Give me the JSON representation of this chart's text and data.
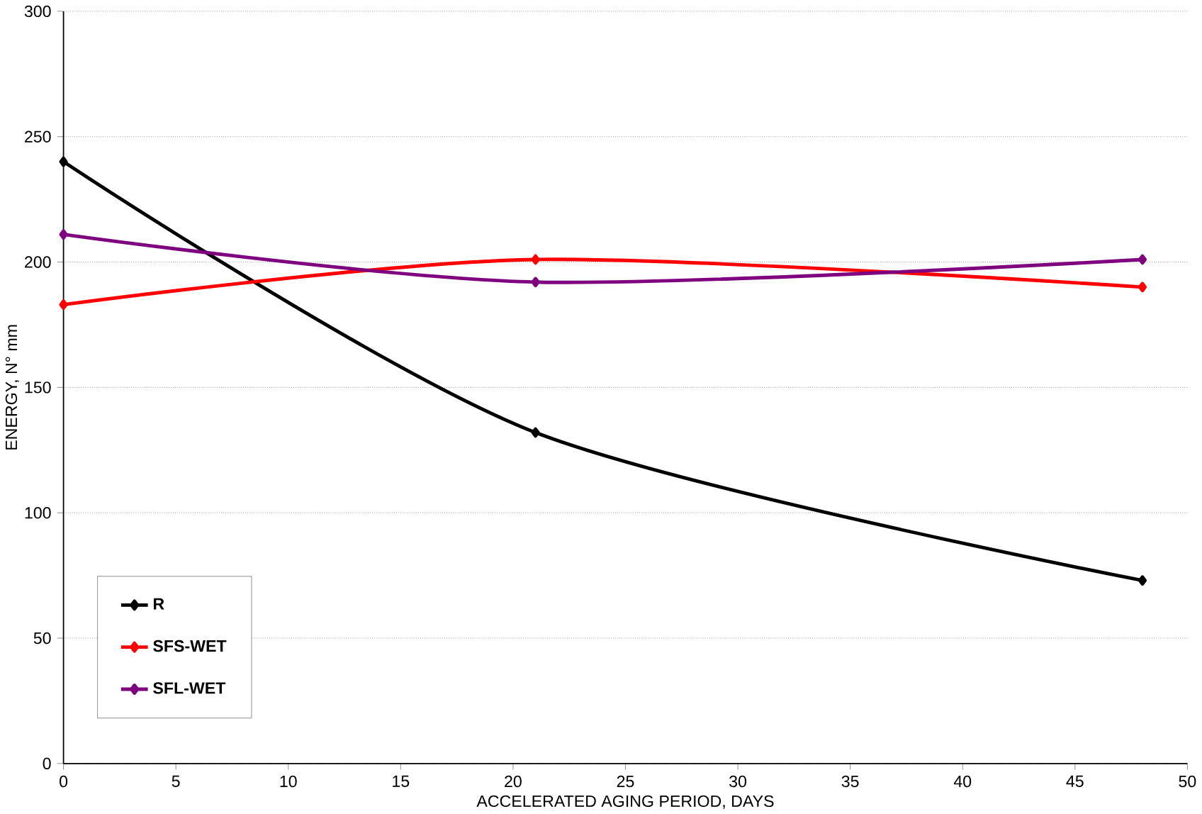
{
  "chart_data": {
    "type": "line",
    "xlabel": "ACCELERATED AGING PERIOD, DAYS",
    "ylabel": "ENERGY, N° mm",
    "xlim": [
      0,
      50
    ],
    "xticks": [
      0,
      5,
      10,
      15,
      20,
      25,
      30,
      35,
      40,
      45,
      50
    ],
    "ylim": [
      0,
      300
    ],
    "yticks": [
      0,
      50,
      100,
      150,
      200,
      250,
      300
    ],
    "grid": "y",
    "legend": "bottom left",
    "marker": "diamond",
    "line_style": "solid",
    "series": [
      {
        "name": "R",
        "color": "#000000",
        "x": [
          0,
          21,
          48
        ],
        "values": [
          240,
          132,
          73
        ]
      },
      {
        "name": "SFS-WET",
        "color": "#ff0000",
        "x": [
          0,
          21,
          48
        ],
        "values": [
          183,
          201,
          190
        ]
      },
      {
        "name": "SFL-WET",
        "color": "#7f007f",
        "x": [
          0,
          21,
          48
        ],
        "values": [
          211,
          192,
          201
        ]
      }
    ]
  }
}
